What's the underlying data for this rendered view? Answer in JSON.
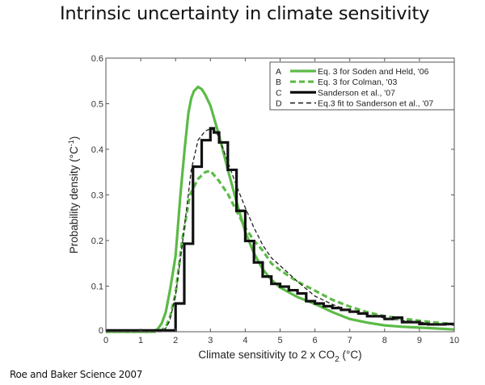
{
  "slide": {
    "title": "Intrinsic uncertainty in climate sensitivity",
    "citation": "Roe and Baker Science 2007"
  },
  "colors": {
    "green": "#5cba47",
    "black": "#111111",
    "axis": "#555555"
  },
  "chart_data": {
    "type": "line",
    "title": "",
    "xlabel": "Climate sensitivity to 2 x CO",
    "xlabel_sub": "2",
    "xlabel_unit": " (°C)",
    "ylabel": "Probability density (°C",
    "ylabel_sup": "-1",
    "ylabel_end": ")",
    "xlim": [
      0,
      10
    ],
    "ylim": [
      0,
      0.6
    ],
    "xticks": [
      0,
      1,
      2,
      3,
      4,
      5,
      6,
      7,
      8,
      9,
      10
    ],
    "xtick_labels": [
      "0",
      "1",
      "2",
      "3",
      "4",
      "5",
      "6",
      "7",
      "8",
      "9",
      "10"
    ],
    "yticks": [
      0,
      0.1,
      0.2,
      0.3,
      0.4,
      0.5,
      0.6
    ],
    "ytick_labels": [
      "0",
      "0.1",
      "0.2",
      "0.3",
      "0.4",
      "0.5",
      "0.6"
    ],
    "grid": false,
    "legend_position": "top-right",
    "series": [
      {
        "id": "A",
        "name": "Eq. 3 for Soden and Held, '06",
        "style": "solid-green",
        "x": [
          0,
          1.3,
          1.48,
          1.6,
          1.72,
          1.85,
          2.0,
          2.14,
          2.26,
          2.37,
          2.45,
          2.53,
          2.645,
          2.75,
          2.85,
          3.0,
          3.25,
          3.5,
          3.75,
          4.0,
          4.25,
          4.5,
          4.75,
          5.0,
          5.5,
          6.0,
          6.5,
          7.0,
          7.5,
          8.0,
          8.5,
          9.0,
          9.5,
          10.0
        ],
        "y": [
          0,
          0,
          0.005,
          0.018,
          0.043,
          0.095,
          0.166,
          0.3,
          0.4,
          0.48,
          0.512,
          0.528,
          0.537,
          0.532,
          0.52,
          0.496,
          0.43,
          0.355,
          0.285,
          0.219,
          0.172,
          0.137,
          0.114,
          0.097,
          0.076,
          0.061,
          0.043,
          0.028,
          0.02,
          0.014,
          0.011,
          0.009,
          0.007,
          0.005
        ]
      },
      {
        "id": "B",
        "name": "Eq. 3 for Colman, '03",
        "style": "dashed-green",
        "x": [
          0,
          1.45,
          1.6,
          1.72,
          1.85,
          2.0,
          2.18,
          2.41,
          2.645,
          2.85,
          3.0,
          3.25,
          3.5,
          3.75,
          4.0,
          4.25,
          4.5,
          4.75,
          5.0,
          5.5,
          6.0,
          6.5,
          7.0,
          7.5,
          8.0,
          8.5,
          9.0,
          9.5,
          10.0
        ],
        "y": [
          0,
          0,
          0.004,
          0.01,
          0.035,
          0.084,
          0.196,
          0.3,
          0.335,
          0.35,
          0.353,
          0.33,
          0.302,
          0.265,
          0.228,
          0.2,
          0.178,
          0.15,
          0.135,
          0.11,
          0.09,
          0.07,
          0.055,
          0.043,
          0.034,
          0.029,
          0.024,
          0.02,
          0.016
        ]
      },
      {
        "id": "C",
        "name": "Sanderson et al., '07",
        "style": "stairs-black",
        "bin_edges": [
          0,
          2.0,
          2.25,
          2.5,
          2.75,
          3.0,
          3.1,
          3.25,
          3.5,
          3.75,
          4.0,
          4.25,
          4.5,
          4.75,
          5.0,
          5.25,
          5.5,
          5.75,
          6.0,
          6.25,
          6.5,
          6.75,
          7.0,
          7.25,
          7.5,
          7.75,
          8.0,
          8.25,
          8.5,
          8.75,
          9.0,
          9.25,
          9.5,
          9.75,
          10.0
        ],
        "values": [
          0.003,
          0.062,
          0.193,
          0.362,
          0.42,
          0.446,
          0.437,
          0.415,
          0.355,
          0.265,
          0.199,
          0.152,
          0.121,
          0.105,
          0.099,
          0.091,
          0.084,
          0.067,
          0.062,
          0.056,
          0.052,
          0.048,
          0.044,
          0.04,
          0.034,
          0.034,
          0.028,
          0.031,
          0.021,
          0.021,
          0.017,
          0.016,
          0.016,
          0.017
        ]
      },
      {
        "id": "D",
        "name": "Eq.3 fit to Sanderson et al., '07",
        "style": "dashed-black",
        "x": [
          0,
          1.6,
          1.72,
          1.83,
          2.0,
          2.22,
          2.45,
          2.645,
          2.85,
          3.0,
          3.15,
          3.25,
          3.5,
          3.75,
          4.0,
          4.25,
          4.5,
          4.75,
          5.0,
          5.5,
          6.0,
          6.5,
          7.0,
          7.5,
          8.0,
          8.5,
          9.0,
          9.5,
          10.0
        ],
        "y": [
          0,
          0,
          0.008,
          0.023,
          0.08,
          0.208,
          0.355,
          0.42,
          0.44,
          0.445,
          0.44,
          0.425,
          0.372,
          0.32,
          0.272,
          0.228,
          0.19,
          0.162,
          0.145,
          0.11,
          0.078,
          0.06,
          0.045,
          0.037,
          0.03,
          0.025,
          0.021,
          0.017,
          0.014
        ]
      }
    ]
  }
}
